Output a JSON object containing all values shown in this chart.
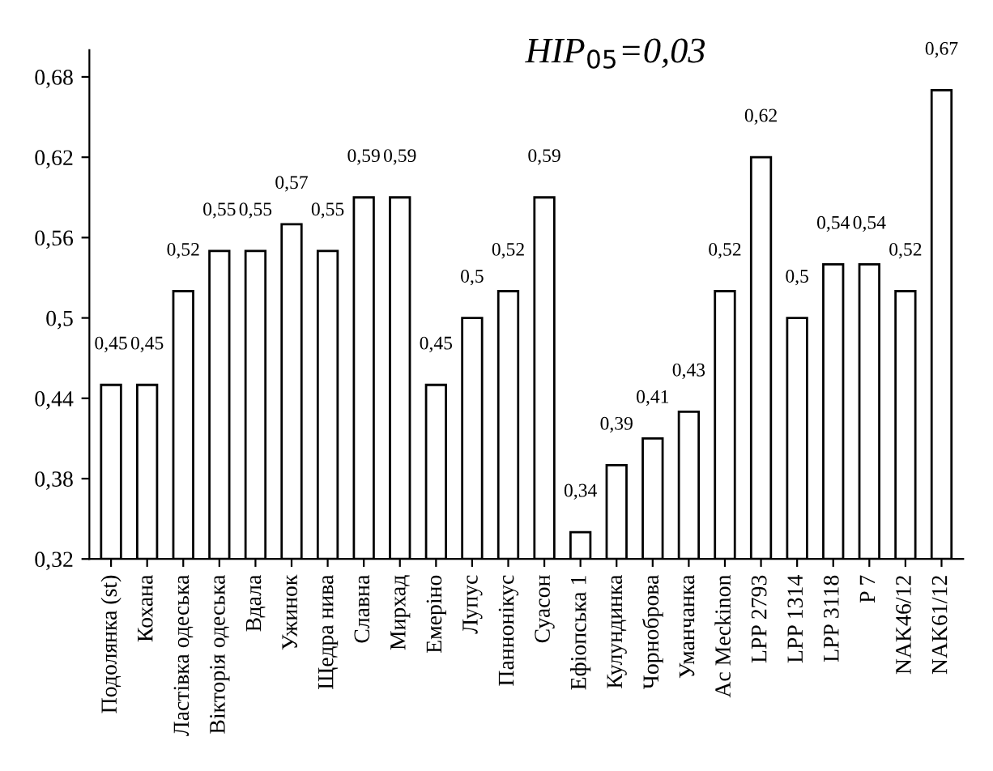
{
  "chart_data": {
    "type": "bar",
    "categories": [
      "Подолянка (st)",
      "Кохана",
      "Ластівка одеська",
      "Вікторія одеська",
      "Вдала",
      "Ужинок",
      "Щедра нива",
      "Славна",
      "Мирхад",
      "Емеріно",
      "Лупус",
      "Паннонікус",
      "Суасон",
      "Ефіопська 1",
      "Кулундинка",
      "Чорноброва",
      "Уманчанка",
      "Ac Meckinon",
      "LPP 2793",
      "LPP 1314",
      "LPP 3118",
      "P 7",
      "NAK46/12",
      "NAK61/12"
    ],
    "values": [
      0.45,
      0.45,
      0.52,
      0.55,
      0.55,
      0.57,
      0.55,
      0.59,
      0.59,
      0.45,
      0.5,
      0.52,
      0.59,
      0.34,
      0.39,
      0.41,
      0.43,
      0.52,
      0.62,
      0.5,
      0.54,
      0.54,
      0.52,
      0.67
    ],
    "value_labels": [
      "0,45",
      "0,45",
      "0,52",
      "0,55",
      "0,55",
      "0,57",
      "0,55",
      "0,59",
      "0,59",
      "0,45",
      "0,5",
      "0,52",
      "0,59",
      "0,34",
      "0,39",
      "0,41",
      "0,43",
      "0,52",
      "0,62",
      "0,5",
      "0,54",
      "0,54",
      "0,52",
      "0,67"
    ],
    "color": "#ffffff",
    "ylim": [
      0.32,
      0.7
    ],
    "yticks": [
      {
        "value": 0.32,
        "label": "0,32"
      },
      {
        "value": 0.38,
        "label": "0,38"
      },
      {
        "value": 0.44,
        "label": "0,44"
      },
      {
        "value": 0.5,
        "label": "0,5"
      },
      {
        "value": 0.56,
        "label": "0,56"
      },
      {
        "value": 0.62,
        "label": "0,62"
      },
      {
        "value": 0.68,
        "label": "0,68"
      }
    ],
    "grid": false,
    "annotations": [
      "HIP$_{05}$=0,03"
    ]
  }
}
